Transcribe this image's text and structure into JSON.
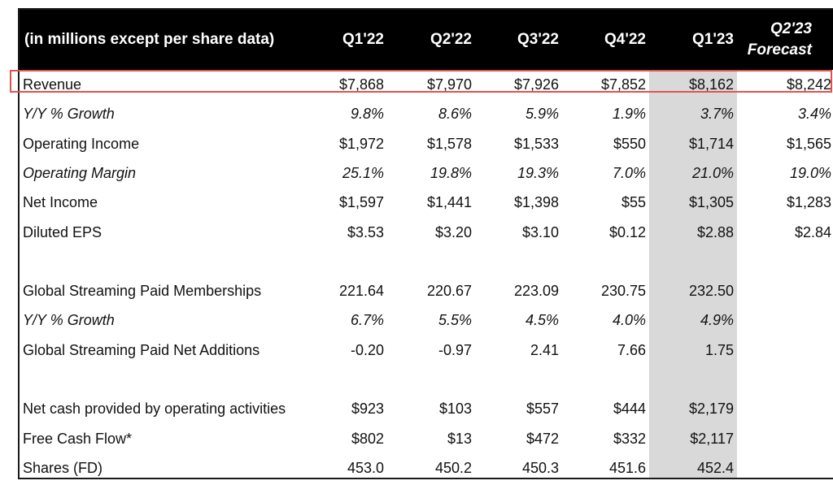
{
  "header": {
    "label": "(in millions except per share data)",
    "quarters": [
      "Q1'22",
      "Q2'22",
      "Q3'22",
      "Q4'22",
      "Q1'23"
    ],
    "forecast_line1": "Q2'23",
    "forecast_line2": "Forecast"
  },
  "rows": [
    {
      "label": "Revenue",
      "italic": false,
      "values": [
        "$7,868",
        "$7,970",
        "$7,926",
        "$7,852",
        "$8,162",
        "$8,242"
      ]
    },
    {
      "label": "Y/Y % Growth",
      "italic": true,
      "values": [
        "9.8%",
        "8.6%",
        "5.9%",
        "1.9%",
        "3.7%",
        "3.4%"
      ]
    },
    {
      "label": "Operating Income",
      "italic": false,
      "values": [
        "$1,972",
        "$1,578",
        "$1,533",
        "$550",
        "$1,714",
        "$1,565"
      ]
    },
    {
      "label": "Operating Margin",
      "italic": true,
      "values": [
        "25.1%",
        "19.8%",
        "19.3%",
        "7.0%",
        "21.0%",
        "19.0%"
      ]
    },
    {
      "label": "Net Income",
      "italic": false,
      "values": [
        "$1,597",
        "$1,441",
        "$1,398",
        "$55",
        "$1,305",
        "$1,283"
      ]
    },
    {
      "label": "Diluted EPS",
      "italic": false,
      "values": [
        "$3.53",
        "$3.20",
        "$3.10",
        "$0.12",
        "$2.88",
        "$2.84"
      ]
    },
    {
      "label": "",
      "italic": false,
      "values": [
        "",
        "",
        "",
        "",
        "",
        ""
      ]
    },
    {
      "label": "Global Streaming Paid Memberships",
      "italic": false,
      "values": [
        "221.64",
        "220.67",
        "223.09",
        "230.75",
        "232.50",
        ""
      ]
    },
    {
      "label": "Y/Y % Growth",
      "italic": true,
      "values": [
        "6.7%",
        "5.5%",
        "4.5%",
        "4.0%",
        "4.9%",
        ""
      ]
    },
    {
      "label": "Global Streaming Paid Net Additions",
      "italic": false,
      "values": [
        "-0.20",
        "-0.97",
        "2.41",
        "7.66",
        "1.75",
        ""
      ]
    },
    {
      "label": "",
      "italic": false,
      "values": [
        "",
        "",
        "",
        "",
        "",
        ""
      ]
    },
    {
      "label": "Net cash provided by operating activities",
      "italic": false,
      "values": [
        "$923",
        "$103",
        "$557",
        "$444",
        "$2,179",
        ""
      ]
    },
    {
      "label": "Free Cash Flow*",
      "italic": false,
      "values": [
        "$802",
        "$13",
        "$472",
        "$332",
        "$2,117",
        ""
      ]
    },
    {
      "label": "Shares (FD)",
      "italic": false,
      "values": [
        "453.0",
        "450.2",
        "450.3",
        "451.6",
        "452.4",
        ""
      ]
    }
  ],
  "colors": {
    "header_bg": "#000000",
    "highlight_column": "#d9d9d9",
    "revenue_box": "#e05252"
  }
}
